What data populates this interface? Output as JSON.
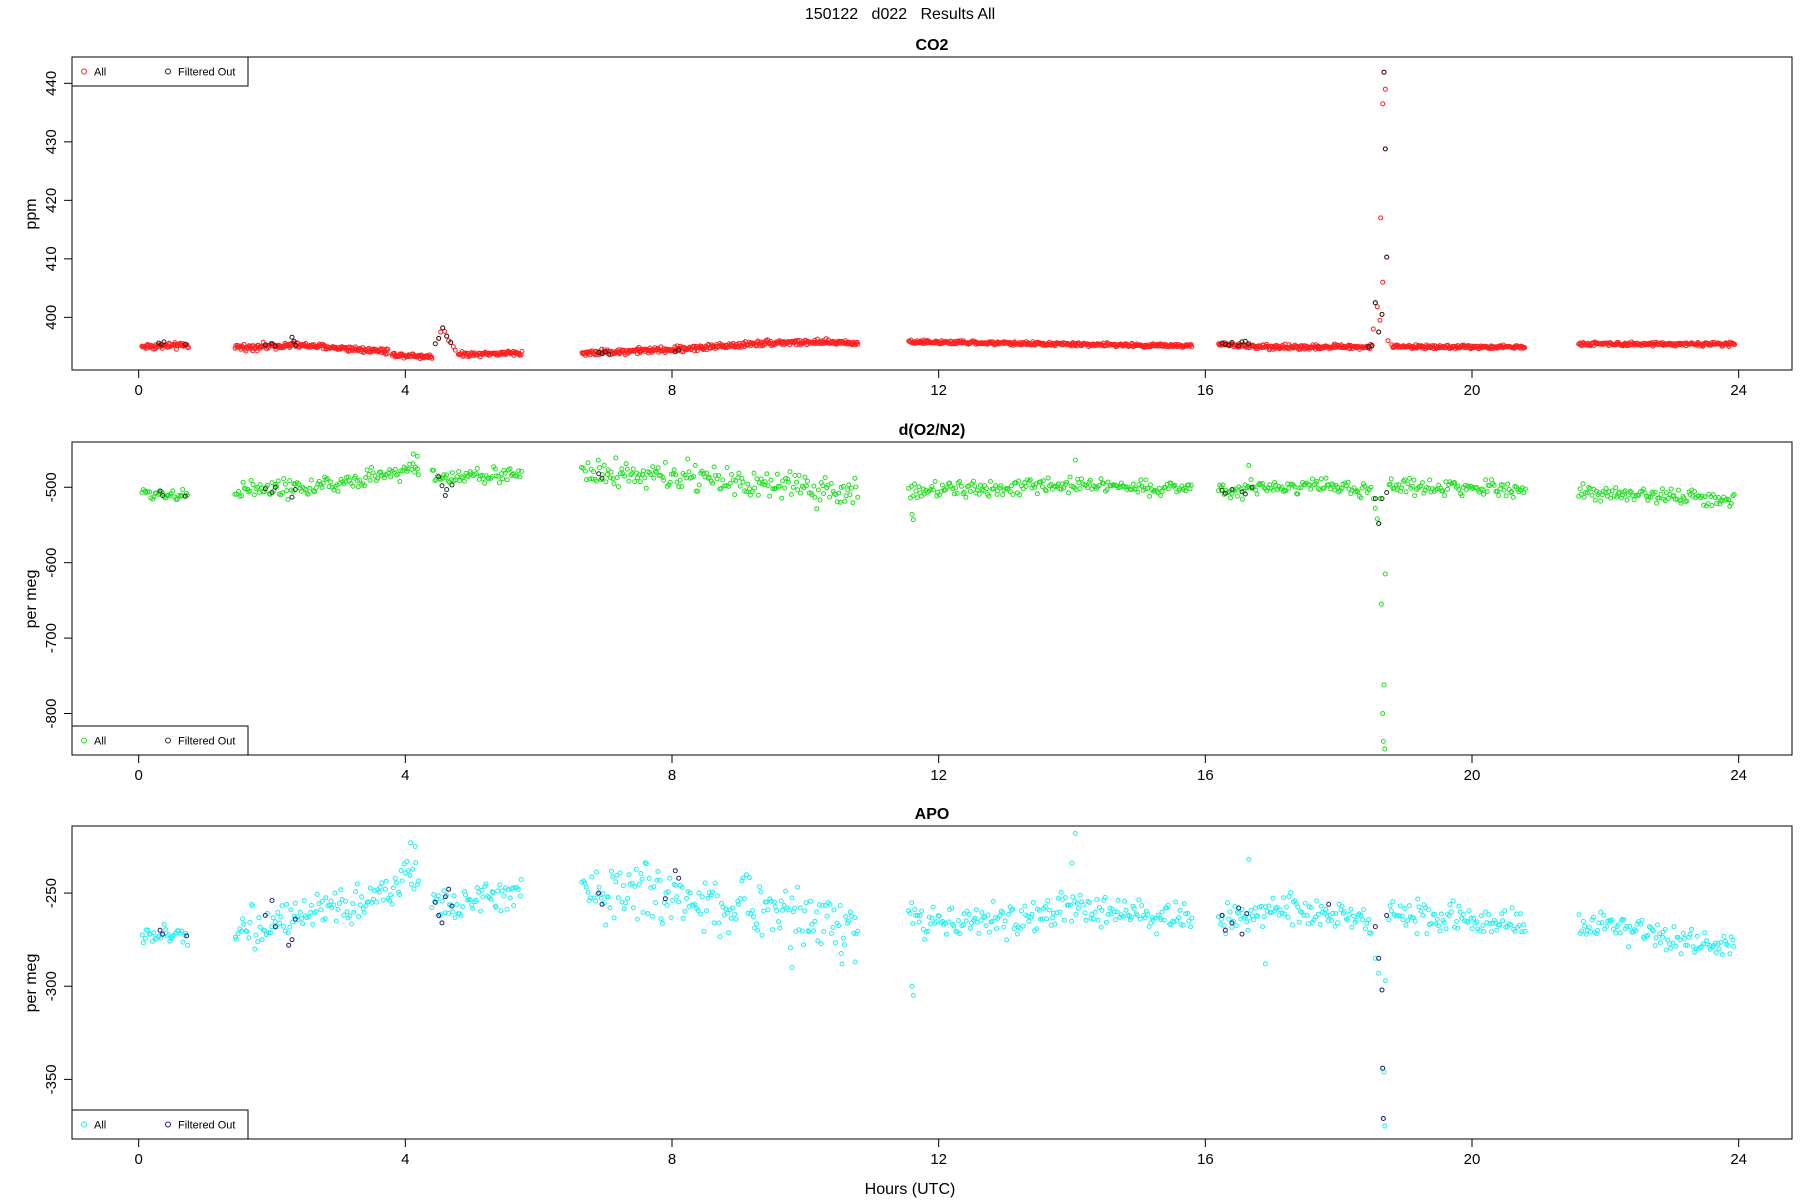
{
  "page_title": "150122   d022   Results All",
  "x_axis_label": "Hours (UTC)",
  "chart_data": [
    {
      "type": "scatter",
      "title": "CO2",
      "ylabel": "ppm",
      "xlim": [
        -1.0,
        24.8
      ],
      "ylim": [
        391,
        444.5
      ],
      "xticks": [
        0,
        4,
        8,
        12,
        16,
        20,
        24
      ],
      "xtick_labels": [
        "0",
        "4",
        "8",
        "12",
        "16",
        "20",
        "24"
      ],
      "yticks": [
        400,
        410,
        420,
        430,
        440
      ],
      "ytick_labels": [
        "400",
        "410",
        "420",
        "430",
        "440"
      ],
      "legend": {
        "position": "top-left",
        "entries": [
          "All",
          "Filtered Out"
        ]
      },
      "colors": {
        "all": "#ff2020",
        "filtered": "#3a1a1a"
      },
      "scatter_mode": "dense",
      "segments": [
        {
          "x_start": 0.05,
          "x_end": 0.75,
          "base": [
            [
              0.05,
              395.0
            ],
            [
              0.75,
              395.2
            ]
          ],
          "noise": 0.25
        },
        {
          "x_start": 1.45,
          "x_end": 3.75,
          "base": [
            [
              1.45,
              394.8
            ],
            [
              2.3,
              395.3
            ],
            [
              3.75,
              394.2
            ]
          ],
          "noise": 0.25
        },
        {
          "x_start": 3.8,
          "x_end": 4.4,
          "base": [
            [
              3.8,
              393.6
            ],
            [
              4.4,
              393.3
            ]
          ],
          "noise": 0.2
        },
        {
          "x_start": 4.8,
          "x_end": 5.75,
          "base": [
            [
              4.8,
              393.7
            ],
            [
              5.75,
              393.9
            ]
          ],
          "noise": 0.2
        },
        {
          "x_start": 6.65,
          "x_end": 10.8,
          "base": [
            [
              6.65,
              393.9
            ],
            [
              8.0,
              394.5
            ],
            [
              9.5,
              395.7
            ],
            [
              10.8,
              395.7
            ]
          ],
          "noise": 0.25
        },
        {
          "x_start": 11.55,
          "x_end": 15.8,
          "base": [
            [
              11.55,
              395.8
            ],
            [
              15.8,
              395.1
            ]
          ],
          "noise": 0.15
        },
        {
          "x_start": 16.2,
          "x_end": 18.5,
          "base": [
            [
              16.2,
              395.4
            ],
            [
              16.9,
              394.9
            ],
            [
              18.5,
              395.0
            ]
          ],
          "noise": 0.2
        },
        {
          "x_start": 18.8,
          "x_end": 20.8,
          "base": [
            [
              18.8,
              395.0
            ],
            [
              20.8,
              394.9
            ]
          ],
          "noise": 0.15
        },
        {
          "x_start": 21.6,
          "x_end": 23.95,
          "base": [
            [
              21.6,
              395.5
            ],
            [
              23.95,
              395.4
            ]
          ],
          "noise": 0.15
        }
      ],
      "extra_points": [
        [
          4.5,
          396.4
        ],
        [
          4.53,
          397.5
        ],
        [
          4.56,
          398.2
        ],
        [
          4.59,
          397.6
        ],
        [
          4.62,
          396.8
        ],
        [
          4.65,
          396.0
        ],
        [
          4.68,
          395.7
        ],
        [
          4.72,
          395.0
        ],
        [
          4.75,
          394.4
        ],
        [
          18.52,
          398.0
        ],
        [
          18.55,
          402.5
        ],
        [
          18.58,
          401.8
        ],
        [
          18.6,
          397.5
        ],
        [
          18.62,
          399.5
        ],
        [
          18.65,
          400.5
        ],
        [
          18.63,
          417.0
        ],
        [
          18.66,
          436.5
        ],
        [
          18.68,
          441.9
        ],
        [
          18.7,
          439.0
        ],
        [
          18.7,
          428.8
        ],
        [
          18.72,
          410.3
        ],
        [
          18.66,
          406.0
        ],
        [
          18.74,
          396.0
        ]
      ],
      "filtered_points": [
        [
          0.3,
          395.6
        ],
        [
          0.34,
          395.4
        ],
        [
          0.38,
          395.8
        ],
        [
          0.7,
          395.4
        ],
        [
          1.9,
          395.3
        ],
        [
          2.0,
          395.5
        ],
        [
          2.05,
          395.1
        ],
        [
          2.3,
          396.6
        ],
        [
          2.33,
          395.9
        ],
        [
          2.36,
          395.2
        ],
        [
          4.45,
          395.5
        ],
        [
          4.5,
          396.4
        ],
        [
          4.56,
          398.2
        ],
        [
          4.62,
          396.8
        ],
        [
          4.68,
          395.7
        ],
        [
          6.9,
          394.0
        ],
        [
          6.95,
          393.8
        ],
        [
          7.0,
          394.1
        ],
        [
          7.05,
          393.7
        ],
        [
          8.05,
          394.1
        ],
        [
          8.1,
          394.4
        ],
        [
          16.25,
          395.6
        ],
        [
          16.3,
          395.4
        ],
        [
          16.35,
          395.2
        ],
        [
          16.4,
          395.7
        ],
        [
          16.5,
          395.1
        ],
        [
          16.55,
          395.8
        ],
        [
          16.6,
          395.9
        ],
        [
          16.65,
          395.5
        ],
        [
          18.45,
          395.0
        ],
        [
          18.5,
          395.2
        ],
        [
          18.55,
          402.5
        ],
        [
          18.6,
          397.5
        ],
        [
          18.65,
          400.5
        ],
        [
          18.68,
          441.9
        ],
        [
          18.7,
          428.8
        ],
        [
          18.72,
          410.3
        ]
      ]
    },
    {
      "type": "scatter",
      "title": "d(O2/N2)",
      "ylabel": "per meg",
      "xlim": [
        -1.0,
        24.8
      ],
      "ylim": [
        -855,
        -440
      ],
      "xticks": [
        0,
        4,
        8,
        12,
        16,
        20,
        24
      ],
      "xtick_labels": [
        "0",
        "4",
        "8",
        "12",
        "16",
        "20",
        "24"
      ],
      "yticks": [
        -500,
        -600,
        -700,
        -800
      ],
      "ytick_labels": [
        "-500",
        "-600",
        "-700",
        "-800"
      ],
      "legend": {
        "position": "bottom-left",
        "entries": [
          "All",
          "Filtered Out"
        ]
      },
      "colors": {
        "all": "#20e020",
        "filtered": "#1a3a1a"
      },
      "scatter_mode": "sparse",
      "segments": [
        {
          "x_start": 0.05,
          "x_end": 0.75,
          "base": [
            [
              0.05,
              -508
            ],
            [
              0.75,
              -510
            ]
          ],
          "noise": 4
        },
        {
          "x_start": 1.45,
          "x_end": 4.2,
          "base": [
            [
              1.45,
              -503
            ],
            [
              2.5,
              -501
            ],
            [
              3.5,
              -488
            ],
            [
              4.2,
              -473
            ]
          ],
          "noise": 6
        },
        {
          "x_start": 4.4,
          "x_end": 5.75,
          "base": [
            [
              4.4,
              -487
            ],
            [
              5.75,
              -483
            ]
          ],
          "noise": 5
        },
        {
          "x_start": 6.65,
          "x_end": 10.8,
          "base": [
            [
              6.65,
              -478
            ],
            [
              8.0,
              -486
            ],
            [
              9.5,
              -498
            ],
            [
              10.8,
              -508
            ]
          ],
          "noise": 10
        },
        {
          "x_start": 11.55,
          "x_end": 15.8,
          "base": [
            [
              11.55,
              -505
            ],
            [
              13.0,
              -502
            ],
            [
              14.0,
              -496
            ],
            [
              15.8,
              -502
            ]
          ],
          "noise": 5
        },
        {
          "x_start": 16.2,
          "x_end": 18.5,
          "base": [
            [
              16.2,
              -505
            ],
            [
              17.3,
              -498
            ],
            [
              18.5,
              -503
            ]
          ],
          "noise": 5
        },
        {
          "x_start": 18.75,
          "x_end": 20.8,
          "base": [
            [
              18.75,
              -498
            ],
            [
              20.8,
              -503
            ]
          ],
          "noise": 5
        },
        {
          "x_start": 21.6,
          "x_end": 23.95,
          "base": [
            [
              21.6,
              -505
            ],
            [
              23.95,
              -518
            ]
          ],
          "noise": 5
        }
      ],
      "extra_points": [
        [
          4.12,
          -456
        ],
        [
          4.18,
          -459
        ],
        [
          14.05,
          -464
        ],
        [
          16.65,
          -471
        ],
        [
          11.6,
          -536
        ],
        [
          11.62,
          -543
        ],
        [
          18.52,
          -515
        ],
        [
          18.55,
          -528
        ],
        [
          18.58,
          -542
        ],
        [
          18.6,
          -548
        ],
        [
          18.62,
          -515
        ],
        [
          18.64,
          -655
        ],
        [
          18.7,
          -615
        ],
        [
          18.68,
          -762
        ],
        [
          18.66,
          -800
        ],
        [
          18.67,
          -837
        ],
        [
          18.69,
          -847
        ]
      ],
      "filtered_points": [
        [
          0.32,
          -505
        ],
        [
          0.36,
          -511
        ],
        [
          0.7,
          -512
        ],
        [
          1.9,
          -502
        ],
        [
          2.0,
          -507
        ],
        [
          2.05,
          -500
        ],
        [
          2.3,
          -513
        ],
        [
          2.35,
          -503
        ],
        [
          4.5,
          -486
        ],
        [
          4.55,
          -498
        ],
        [
          4.6,
          -511
        ],
        [
          4.62,
          -503
        ],
        [
          4.7,
          -497
        ],
        [
          6.9,
          -482
        ],
        [
          6.95,
          -488
        ],
        [
          16.25,
          -504
        ],
        [
          16.3,
          -508
        ],
        [
          16.4,
          -503
        ],
        [
          16.55,
          -506
        ],
        [
          16.6,
          -509
        ],
        [
          16.7,
          -500
        ],
        [
          18.55,
          -515
        ],
        [
          18.6,
          -548
        ],
        [
          18.65,
          -515
        ],
        [
          18.72,
          -507
        ]
      ]
    },
    {
      "type": "scatter",
      "title": "APO",
      "ylabel": "per meg",
      "xlim": [
        -1.0,
        24.8
      ],
      "ylim": [
        -382,
        -214
      ],
      "xticks": [
        0,
        4,
        8,
        12,
        16,
        20,
        24
      ],
      "xtick_labels": [
        "0",
        "4",
        "8",
        "12",
        "16",
        "20",
        "24"
      ],
      "yticks": [
        -250,
        -300,
        -350
      ],
      "ytick_labels": [
        "-250",
        "-300",
        "-350"
      ],
      "legend": {
        "position": "bottom-left",
        "entries": [
          "All",
          "Filtered Out"
        ]
      },
      "colors": {
        "all": "#20f0f0",
        "filtered": "#202080"
      },
      "scatter_mode": "sparse",
      "segments": [
        {
          "x_start": 0.05,
          "x_end": 0.75,
          "base": [
            [
              0.05,
              -273
            ],
            [
              0.75,
              -273
            ]
          ],
          "noise": 3
        },
        {
          "x_start": 1.45,
          "x_end": 4.2,
          "base": [
            [
              1.45,
              -268
            ],
            [
              2.5,
              -265
            ],
            [
              3.5,
              -252
            ],
            [
              4.2,
              -240
            ]
          ],
          "noise": 5
        },
        {
          "x_start": 4.4,
          "x_end": 5.75,
          "base": [
            [
              4.4,
              -258
            ],
            [
              5.75,
              -249
            ]
          ],
          "noise": 4
        },
        {
          "x_start": 6.65,
          "x_end": 10.8,
          "base": [
            [
              6.65,
              -248
            ],
            [
              8.0,
              -252
            ],
            [
              9.5,
              -260
            ],
            [
              10.8,
              -268
            ]
          ],
          "noise": 8
        },
        {
          "x_start": 11.55,
          "x_end": 15.8,
          "base": [
            [
              11.55,
              -264
            ],
            [
              13.0,
              -265
            ],
            [
              14.0,
              -258
            ],
            [
              15.8,
              -264
            ]
          ],
          "noise": 4
        },
        {
          "x_start": 16.2,
          "x_end": 18.5,
          "base": [
            [
              16.2,
              -264
            ],
            [
              17.3,
              -258
            ],
            [
              18.5,
              -265
            ]
          ],
          "noise": 4
        },
        {
          "x_start": 18.75,
          "x_end": 20.8,
          "base": [
            [
              18.75,
              -260
            ],
            [
              20.8,
              -268
            ]
          ],
          "noise": 4
        },
        {
          "x_start": 21.6,
          "x_end": 23.95,
          "base": [
            [
              21.6,
              -266
            ],
            [
              23.95,
              -281
            ]
          ],
          "noise": 4
        }
      ],
      "extra_points": [
        [
          4.08,
          -223
        ],
        [
          4.15,
          -225
        ],
        [
          14.05,
          -218
        ],
        [
          14.0,
          -234
        ],
        [
          16.65,
          -232
        ],
        [
          11.6,
          -300
        ],
        [
          11.62,
          -305
        ],
        [
          9.8,
          -290
        ],
        [
          10.55,
          -288
        ],
        [
          10.75,
          -287
        ],
        [
          16.9,
          -288
        ],
        [
          18.55,
          -285
        ],
        [
          18.6,
          -293
        ],
        [
          18.65,
          -302
        ],
        [
          18.7,
          -297
        ],
        [
          18.66,
          -344
        ],
        [
          18.68,
          -346
        ],
        [
          18.67,
          -371
        ],
        [
          18.69,
          -375
        ]
      ],
      "filtered_points": [
        [
          0.32,
          -270
        ],
        [
          0.36,
          -272
        ],
        [
          0.72,
          -273
        ],
        [
          1.9,
          -262
        ],
        [
          2.0,
          -254
        ],
        [
          2.05,
          -268
        ],
        [
          2.25,
          -278
        ],
        [
          2.3,
          -275
        ],
        [
          2.35,
          -264
        ],
        [
          4.45,
          -255
        ],
        [
          4.5,
          -262
        ],
        [
          4.55,
          -266
        ],
        [
          4.6,
          -252
        ],
        [
          4.65,
          -248
        ],
        [
          4.7,
          -257
        ],
        [
          6.9,
          -250
        ],
        [
          6.95,
          -256
        ],
        [
          8.05,
          -238
        ],
        [
          8.1,
          -242
        ],
        [
          7.9,
          -253
        ],
        [
          16.25,
          -262
        ],
        [
          16.3,
          -270
        ],
        [
          16.4,
          -266
        ],
        [
          16.5,
          -258
        ],
        [
          16.55,
          -272
        ],
        [
          16.62,
          -261
        ],
        [
          17.85,
          -256
        ],
        [
          18.55,
          -268
        ],
        [
          18.6,
          -285
        ],
        [
          18.65,
          -302
        ],
        [
          18.66,
          -344
        ],
        [
          18.67,
          -371
        ],
        [
          18.72,
          -262
        ]
      ]
    }
  ]
}
